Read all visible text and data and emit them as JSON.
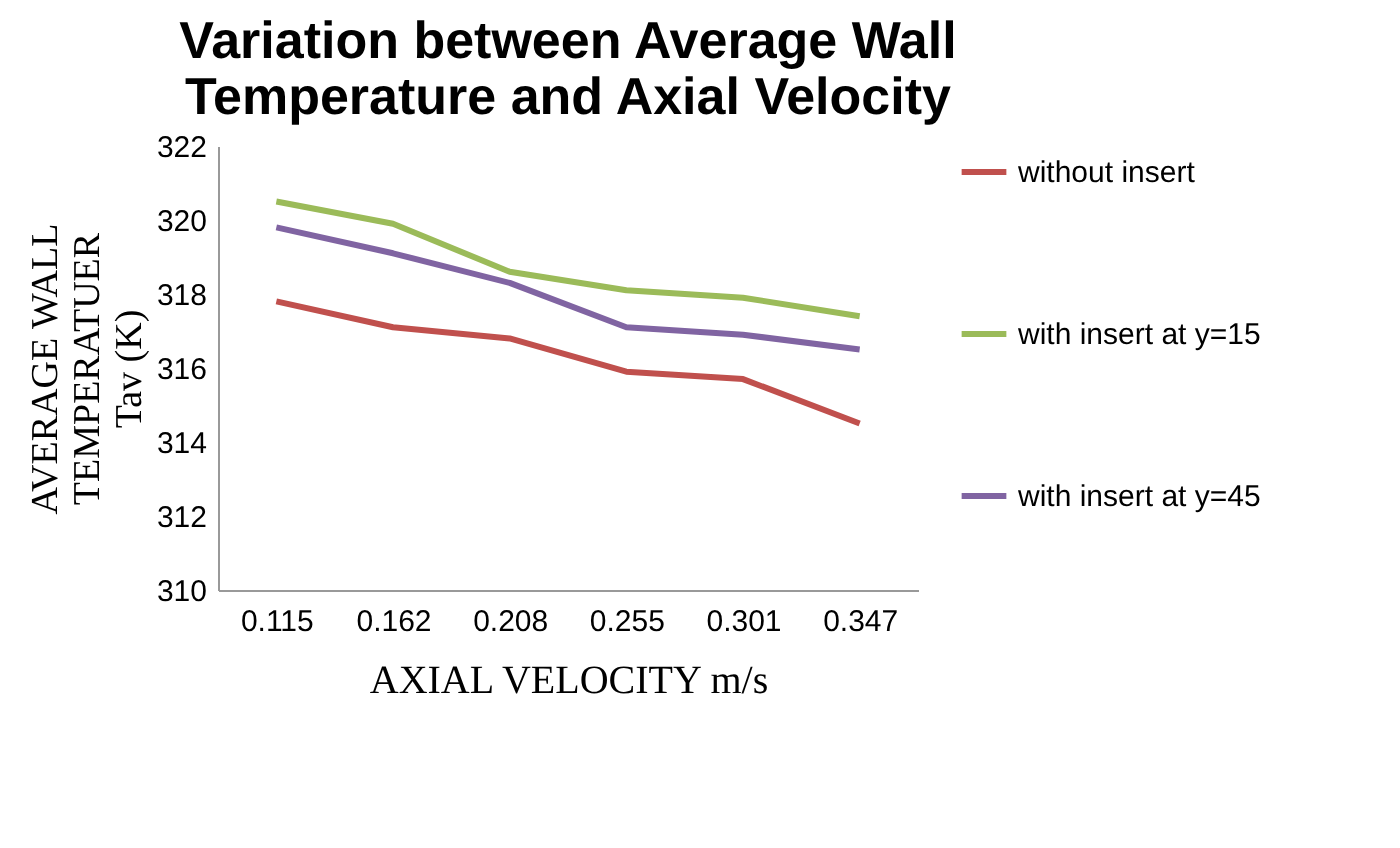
{
  "chart_data": {
    "type": "line",
    "title": "Variation between Average Wall Temperature and Axial Velocity",
    "xlabel": "AXIAL VELOCITY m/s",
    "ylabel": "AVERAGE WALL TEMPERATUER Tav (K)",
    "categories": [
      "0.115",
      "0.162",
      "0.208",
      "0.255",
      "0.301",
      "0.347"
    ],
    "series": [
      {
        "name": "without insert",
        "color": "#c0504d",
        "values": [
          317.8,
          317.1,
          316.8,
          315.9,
          315.7,
          314.5
        ]
      },
      {
        "name": "with insert at y=15",
        "color": "#9bbb59",
        "values": [
          320.5,
          319.9,
          318.6,
          318.1,
          317.9,
          317.4
        ]
      },
      {
        "name": "with insert at y=45",
        "color": "#8064a2",
        "values": [
          319.8,
          319.1,
          318.3,
          317.1,
          316.9,
          316.5
        ]
      }
    ],
    "ylim": [
      310,
      322
    ],
    "yticks": [
      310,
      312,
      314,
      316,
      318,
      320,
      322
    ],
    "grid": false,
    "legend": "right",
    "marker": "none",
    "line_style": "solid"
  }
}
